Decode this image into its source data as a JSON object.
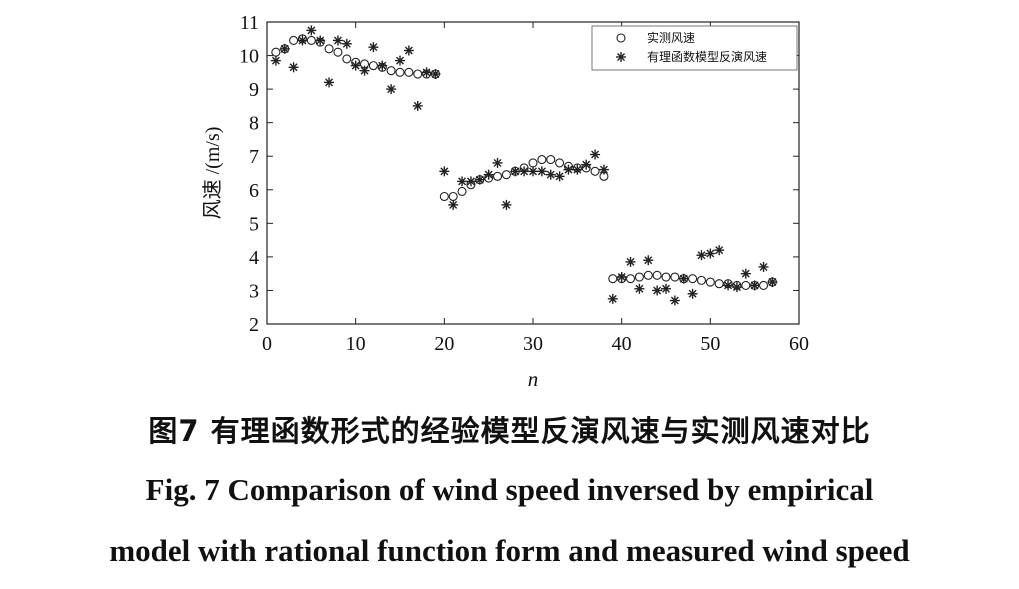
{
  "caption": {
    "zh": "图7  有理函数形式的经验模型反演风速与实测风速对比",
    "en_line1": "Fig. 7  Comparison of wind speed inversed by empirical",
    "en_line2": "model with rational function form and measured wind speed"
  },
  "chart_data": {
    "type": "scatter",
    "xlabel": "n",
    "ylabel": "风速  /(m/s)",
    "xlim": [
      0,
      60
    ],
    "ylim": [
      2,
      11
    ],
    "xticks": [
      0,
      10,
      20,
      30,
      40,
      50,
      60
    ],
    "yticks": [
      2,
      3,
      4,
      5,
      6,
      7,
      8,
      9,
      10,
      11
    ],
    "grid": false,
    "legend": {
      "position": "top-right",
      "entries": [
        "实测风速",
        "有理函数模型反演风速"
      ]
    },
    "series": [
      {
        "name": "实测风速",
        "marker": "circle",
        "x": [
          1,
          2,
          3,
          4,
          5,
          6,
          7,
          8,
          9,
          10,
          11,
          12,
          13,
          14,
          15,
          16,
          17,
          18,
          19,
          20,
          21,
          22,
          23,
          24,
          25,
          26,
          27,
          28,
          29,
          30,
          31,
          32,
          33,
          34,
          35,
          36,
          37,
          38,
          39,
          40,
          41,
          42,
          43,
          44,
          45,
          46,
          47,
          48,
          49,
          50,
          51,
          52,
          53,
          54,
          55,
          56,
          57
        ],
        "y": [
          10.1,
          10.2,
          10.45,
          10.5,
          10.45,
          10.4,
          10.2,
          10.1,
          9.9,
          9.8,
          9.75,
          9.7,
          9.65,
          9.55,
          9.5,
          9.5,
          9.45,
          9.45,
          9.45,
          5.8,
          5.8,
          5.95,
          6.15,
          6.3,
          6.35,
          6.4,
          6.45,
          6.55,
          6.65,
          6.8,
          6.9,
          6.9,
          6.8,
          6.7,
          6.65,
          6.65,
          6.55,
          6.4,
          3.35,
          3.35,
          3.35,
          3.4,
          3.45,
          3.45,
          3.4,
          3.4,
          3.35,
          3.35,
          3.3,
          3.25,
          3.2,
          3.2,
          3.15,
          3.15,
          3.15,
          3.15,
          3.25
        ]
      },
      {
        "name": "有理函数模型反演风速",
        "marker": "star",
        "x": [
          1,
          2,
          3,
          4,
          5,
          6,
          7,
          8,
          9,
          10,
          11,
          12,
          13,
          14,
          15,
          16,
          17,
          18,
          19,
          20,
          21,
          22,
          23,
          24,
          25,
          26,
          27,
          28,
          29,
          30,
          31,
          32,
          33,
          34,
          35,
          36,
          37,
          38,
          39,
          40,
          41,
          42,
          43,
          44,
          45,
          46,
          47,
          48,
          49,
          50,
          51,
          52,
          53,
          54,
          55,
          56,
          57
        ],
        "y": [
          9.85,
          10.2,
          9.65,
          10.45,
          10.75,
          10.45,
          9.2,
          10.45,
          10.35,
          9.7,
          9.55,
          10.25,
          9.7,
          9.0,
          9.85,
          10.15,
          8.5,
          9.5,
          9.45,
          6.55,
          5.55,
          6.25,
          6.25,
          6.3,
          6.45,
          6.8,
          5.55,
          6.55,
          6.55,
          6.55,
          6.55,
          6.45,
          6.4,
          6.6,
          6.6,
          6.75,
          7.05,
          6.6,
          2.75,
          3.4,
          3.85,
          3.05,
          3.9,
          3.0,
          3.05,
          2.7,
          3.35,
          2.9,
          4.05,
          4.1,
          4.2,
          3.15,
          3.1,
          3.5,
          3.15,
          3.7,
          3.25
        ]
      }
    ]
  }
}
